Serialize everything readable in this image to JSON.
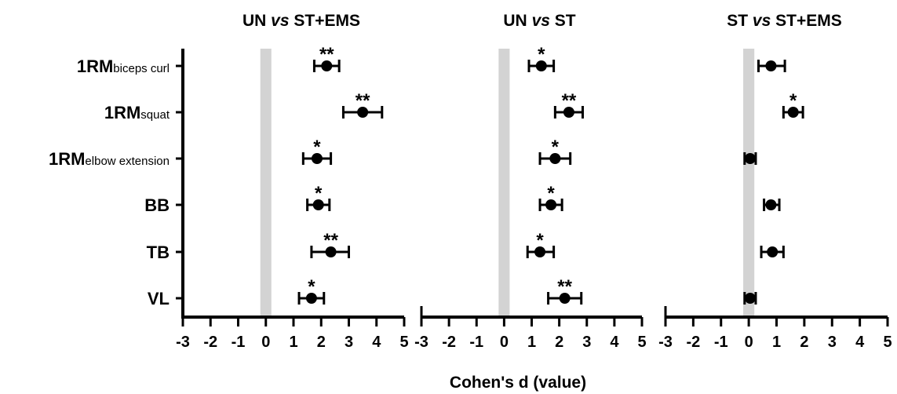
{
  "chart_data": {
    "type": "forest",
    "xlabel": "Cohen's d (value)",
    "xlim": [
      -3,
      5
    ],
    "x_ticks": [
      "-3",
      "-2",
      "-1",
      "0",
      "1",
      "2",
      "3",
      "4",
      "5"
    ],
    "shaded_band": [
      -0.2,
      0.2
    ],
    "rows": [
      {
        "main": "1RM",
        "sub": "biceps curl"
      },
      {
        "main": "1RM",
        "sub": "squat"
      },
      {
        "main": "1RM",
        "sub": "elbow extension"
      },
      {
        "main": "BB",
        "sub": ""
      },
      {
        "main": "TB",
        "sub": ""
      },
      {
        "main": "VL",
        "sub": ""
      }
    ],
    "panels": [
      {
        "title_parts": [
          "UN ",
          "vs",
          " ST+EMS"
        ],
        "points": [
          {
            "d": 2.2,
            "lo": 1.75,
            "hi": 2.65,
            "sig": "**"
          },
          {
            "d": 3.5,
            "lo": 2.8,
            "hi": 4.2,
            "sig": "**"
          },
          {
            "d": 1.85,
            "lo": 1.35,
            "hi": 2.35,
            "sig": "*"
          },
          {
            "d": 1.9,
            "lo": 1.5,
            "hi": 2.3,
            "sig": "*"
          },
          {
            "d": 2.35,
            "lo": 1.65,
            "hi": 3.0,
            "sig": "**"
          },
          {
            "d": 1.65,
            "lo": 1.2,
            "hi": 2.1,
            "sig": "*"
          }
        ]
      },
      {
        "title_parts": [
          "UN ",
          "vs",
          " ST"
        ],
        "points": [
          {
            "d": 1.35,
            "lo": 0.9,
            "hi": 1.8,
            "sig": "*"
          },
          {
            "d": 2.35,
            "lo": 1.85,
            "hi": 2.85,
            "sig": "**"
          },
          {
            "d": 1.85,
            "lo": 1.3,
            "hi": 2.4,
            "sig": "*"
          },
          {
            "d": 1.7,
            "lo": 1.3,
            "hi": 2.1,
            "sig": "*"
          },
          {
            "d": 1.3,
            "lo": 0.85,
            "hi": 1.8,
            "sig": "*"
          },
          {
            "d": 2.2,
            "lo": 1.6,
            "hi": 2.8,
            "sig": "**"
          }
        ]
      },
      {
        "title_parts": [
          "ST ",
          "vs",
          " ST+EMS"
        ],
        "points": [
          {
            "d": 0.8,
            "lo": 0.35,
            "hi": 1.3,
            "sig": ""
          },
          {
            "d": 1.6,
            "lo": 1.25,
            "hi": 1.95,
            "sig": "*"
          },
          {
            "d": 0.05,
            "lo": -0.15,
            "hi": 0.25,
            "sig": ""
          },
          {
            "d": 0.8,
            "lo": 0.55,
            "hi": 1.1,
            "sig": ""
          },
          {
            "d": 0.85,
            "lo": 0.45,
            "hi": 1.25,
            "sig": ""
          },
          {
            "d": 0.05,
            "lo": -0.15,
            "hi": 0.25,
            "sig": ""
          }
        ]
      }
    ]
  }
}
